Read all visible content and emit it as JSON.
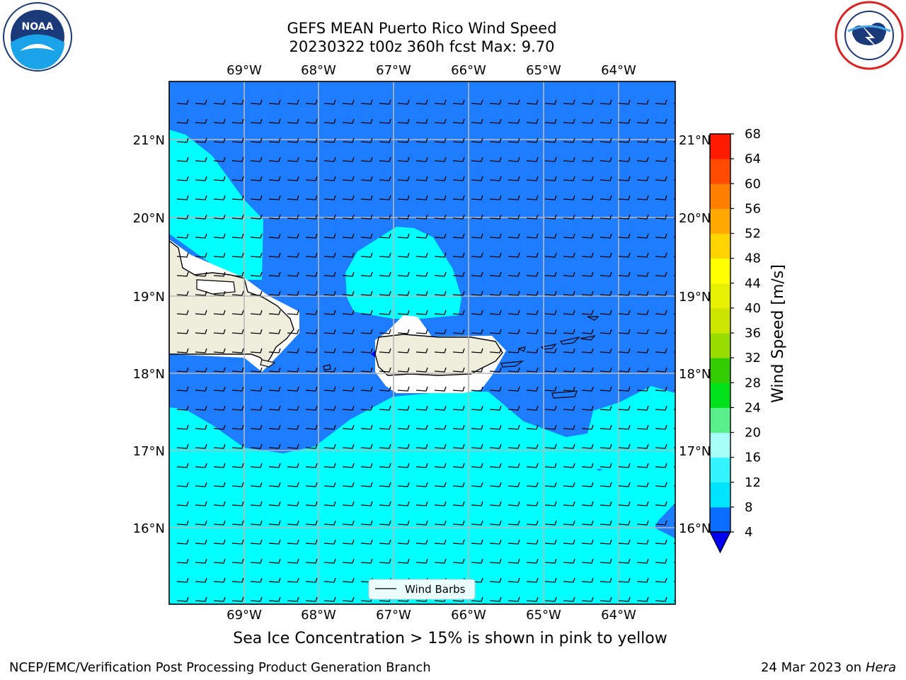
{
  "title_line1": "GEFS MEAN Puerto Rico Wind Speed",
  "title_line2": "20230322 t00z 360h fcst   Max: 9.70",
  "lon_labels": [
    "69°W",
    "68°W",
    "67°W",
    "66°W",
    "65°W",
    "64°W"
  ],
  "lat_labels": [
    "21°N",
    "20°N",
    "19°N",
    "18°N",
    "17°N",
    "16°N"
  ],
  "legend": {
    "label": "Wind Barbs"
  },
  "colorbar": {
    "label": "Wind Speed [m/s]",
    "ticks": [
      "4",
      "8",
      "12",
      "16",
      "20",
      "24",
      "28",
      "32",
      "36",
      "40",
      "44",
      "48",
      "52",
      "56",
      "60",
      "64",
      "68"
    ],
    "colors": [
      "#0a6dff",
      "#00e5ff",
      "#33f5ff",
      "#a6fff7",
      "#59f08c",
      "#00e11a",
      "#33cc00",
      "#99dd00",
      "#cce600",
      "#e6f000",
      "#ffff00",
      "#ffd400",
      "#ffa800",
      "#ff7f00",
      "#ff4c00",
      "#ff1a00"
    ],
    "under_color": "#0000f0"
  },
  "sea_ice_note": "Sea Ice Concentration > 15% is shown in pink to yellow",
  "credit_left": "NCEP/EMC/Verification Post Processing Product Generation Branch",
  "credit_date": "24 Mar 2023 on",
  "credit_host": "Hera",
  "logos": {
    "left": "NOAA",
    "right": "NATIONAL WEATHER SERVICE"
  },
  "map_colors": {
    "ocean_dark": "#1e7cff",
    "ocean_light": "#00ffff",
    "land": "#efeedd",
    "masked": "#ffffff",
    "grid": "#b8b8b8"
  }
}
